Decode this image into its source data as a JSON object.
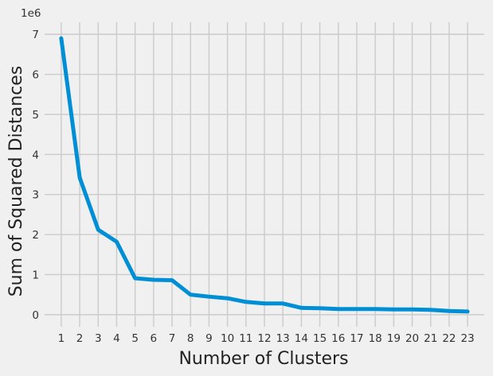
{
  "chart_data": {
    "type": "line",
    "title": "",
    "xlabel": "Number of Clusters",
    "ylabel": "Sum of Squared Distances",
    "y_offset_label": "1e6",
    "y_scale": 1000000,
    "xlim": [
      0.1,
      23.9
    ],
    "ylim": [
      -300000,
      7300000
    ],
    "x_ticks": [
      1,
      2,
      3,
      4,
      5,
      6,
      7,
      8,
      9,
      10,
      11,
      12,
      13,
      14,
      15,
      16,
      17,
      18,
      19,
      20,
      21,
      22,
      23
    ],
    "y_ticks": [
      0,
      1,
      2,
      3,
      4,
      5,
      6,
      7
    ],
    "grid": true,
    "legend": "none",
    "color": "#008fd5",
    "series": [
      {
        "x": [
          1,
          2,
          3,
          4,
          5,
          6,
          7,
          8,
          9,
          10,
          11,
          12,
          13,
          14,
          15,
          16,
          17,
          18,
          19,
          20,
          21,
          22,
          23
        ],
        "values": [
          6900000,
          3420000,
          2120000,
          1820000,
          910000,
          870000,
          860000,
          500000,
          450000,
          410000,
          320000,
          280000,
          280000,
          170000,
          160000,
          140000,
          140000,
          140000,
          130000,
          130000,
          120000,
          90000,
          80000
        ]
      }
    ]
  }
}
